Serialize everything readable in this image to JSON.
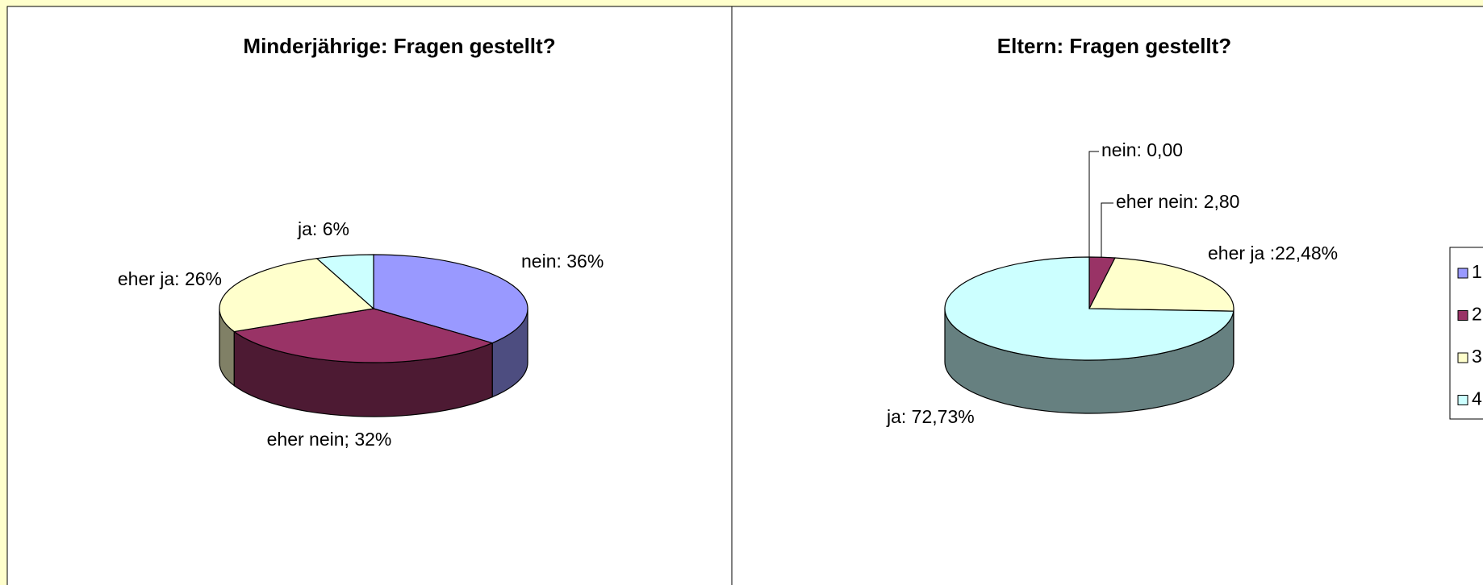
{
  "chart_data": [
    {
      "type": "pie",
      "title": "Minderjährige: Fragen gestellt?",
      "values": [
        36,
        32,
        26,
        6
      ],
      "value_labels": [
        "nein:  36%",
        "eher nein; 32%",
        "eher ja: 26%",
        "ja: 6%"
      ],
      "colors": [
        "#9999ff",
        "#993366",
        "#ffffcc",
        "#ccffff"
      ]
    },
    {
      "type": "pie",
      "title": "Eltern: Fragen gestellt?",
      "categories": [
        "1",
        "2",
        "3",
        "4"
      ],
      "values": [
        0,
        2.8,
        22.48,
        72.73
      ],
      "value_labels": [
        "nein: 0,00",
        "eher nein: 2,80",
        "eher ja :22,48%",
        "ja: 72,73%"
      ],
      "colors": [
        "#9999ff",
        "#993366",
        "#ffffcc",
        "#ccffff"
      ]
    }
  ]
}
